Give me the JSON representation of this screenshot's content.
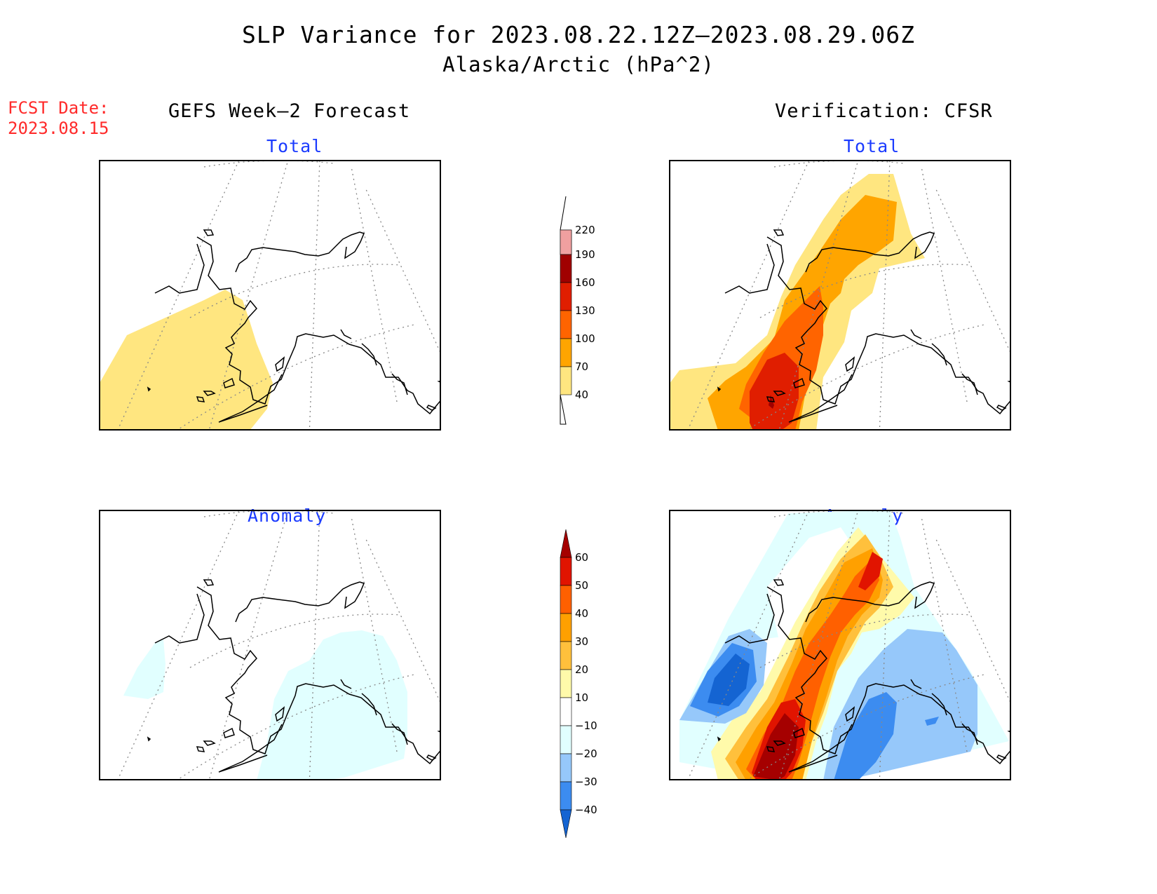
{
  "title": "SLP Variance for 2023.08.22.12Z–2023.08.29.06Z",
  "subtitle": "Alaska/Arctic (hPa^2)",
  "fcst_date": {
    "label": "FCST Date:",
    "value": "2023.08.15"
  },
  "columns": {
    "left": "GEFS Week–2 Forecast",
    "right": "Verification: CFSR"
  },
  "panels": {
    "fc_total": {
      "title": "Total"
    },
    "ver_total": {
      "title": "Total"
    },
    "fc_anom": {
      "title": "Anomaly"
    },
    "ver_anom": {
      "title": "Anomaly"
    }
  },
  "colorbars": {
    "total": {
      "levels": [
        "40",
        "70",
        "100",
        "130",
        "160",
        "190",
        "220"
      ],
      "colors": [
        "#ffe680",
        "#ffa500",
        "#ff6400",
        "#e01e00",
        "#a00000",
        "#f0a0a0",
        "#fde2e2"
      ]
    },
    "anomaly": {
      "levels": [
        "−40",
        "−30",
        "−20",
        "−10",
        "10",
        "20",
        "30",
        "40",
        "50",
        "60"
      ],
      "colors": [
        "#1464d2",
        "#3c8cf0",
        "#96c8fa",
        "#e1ffff",
        "#ffffff",
        "#fffaaa",
        "#ffc03c",
        "#ffa000",
        "#ff6000",
        "#e11400",
        "#a50000"
      ]
    }
  },
  "colors": {
    "title_blue": "#1b3bff",
    "fcst_red": "#ff2a2a"
  }
}
